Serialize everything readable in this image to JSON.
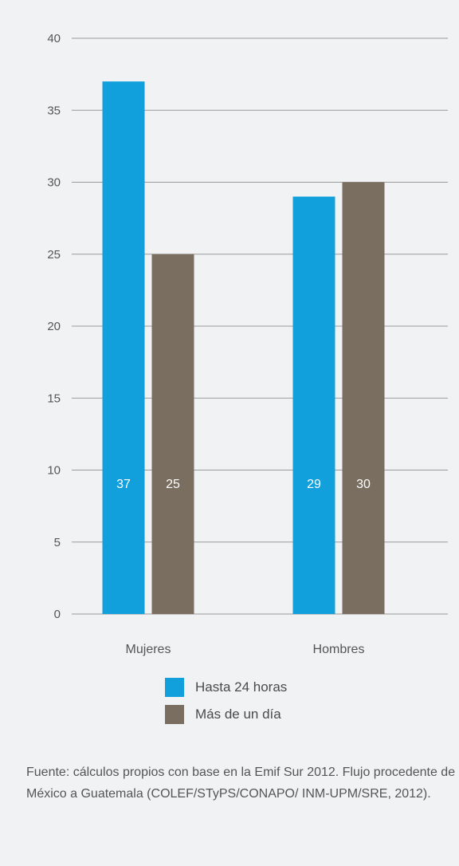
{
  "chart_data": {
    "type": "bar",
    "categories": [
      "Mujeres",
      "Hombres"
    ],
    "series": [
      {
        "name": "Hasta 24 horas",
        "values": [
          37,
          29
        ],
        "color": "#12a0dc"
      },
      {
        "name": "Más de un día",
        "values": [
          25,
          30
        ],
        "color": "#7a6e60"
      }
    ],
    "data_labels": [
      [
        "37",
        "29"
      ],
      [
        "25",
        "30"
      ]
    ],
    "ylim": [
      0,
      40
    ],
    "yticks": [
      0,
      5,
      10,
      15,
      20,
      25,
      30,
      35,
      40
    ],
    "ytick_labels": [
      "0",
      "5",
      "10",
      "15",
      "20",
      "25",
      "30",
      "35",
      "40"
    ],
    "grid": true,
    "legend_position": "bottom"
  },
  "legend": {
    "items": [
      {
        "label": "Hasta 24 horas",
        "color": "#12a0dc"
      },
      {
        "label": "Más de un día",
        "color": "#7a6e60"
      }
    ]
  },
  "source_note": "Fuente: cálculos propios con base en la Emif Sur 2012. Flujo procedente de México a Guatemala (COLEF/STyPS/CONAPO/ INM-UPM/SRE, 2012)."
}
